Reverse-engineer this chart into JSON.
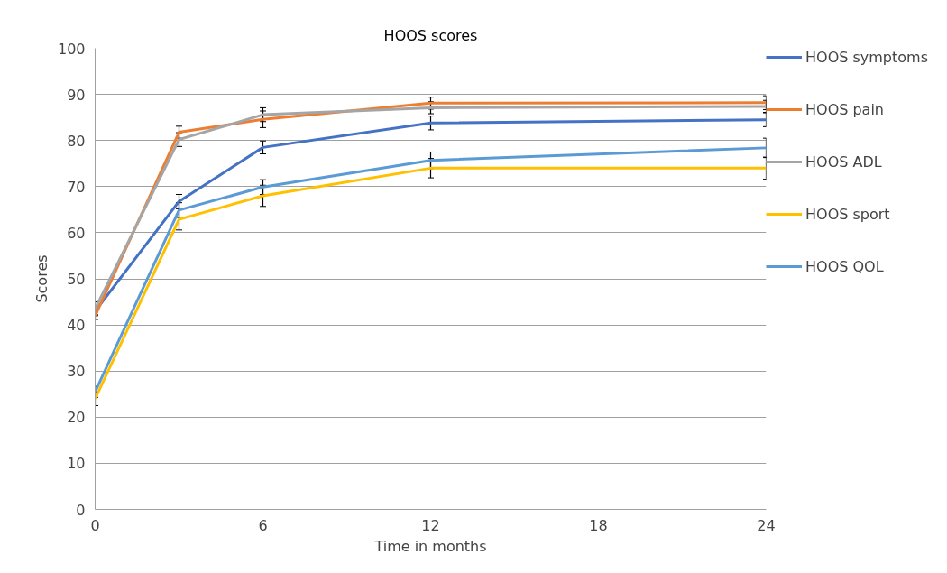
{
  "chart_data": {
    "type": "line",
    "title": "HOOS scores",
    "xlabel": "Time in months",
    "ylabel": "Scores",
    "x": [
      0,
      3,
      6,
      12,
      24
    ],
    "xlim": [
      0,
      24
    ],
    "xticks": [
      0,
      6,
      12,
      18,
      24
    ],
    "ylim": [
      0,
      100
    ],
    "yticks": [
      0,
      10,
      20,
      30,
      40,
      50,
      60,
      70,
      80,
      90,
      100
    ],
    "grid": "y",
    "legend": "right",
    "marker": "none",
    "line_style": "solid",
    "series": [
      {
        "name": "HOOS symptoms",
        "color": "#4472c4",
        "values": [
          43,
          66.8,
          78.5,
          83.8,
          84.5
        ],
        "errors": [
          0.8,
          1.5,
          1.4,
          1.5,
          1.5
        ]
      },
      {
        "name": "HOOS pain",
        "color": "#ed7d31",
        "values": [
          42,
          81.8,
          84.6,
          88.1,
          88.2
        ],
        "errors": [
          0.8,
          1.3,
          1.8,
          1.3,
          1.5
        ]
      },
      {
        "name": "HOOS ADL",
        "color": "#a5a5a5",
        "values": [
          43.5,
          80.2,
          85.6,
          87.1,
          87.4
        ],
        "errors": [
          1.5,
          1.5,
          1.5,
          1.3,
          1.3
        ]
      },
      {
        "name": "HOOS sport",
        "color": "#ffc000",
        "values": [
          24,
          62.9,
          68,
          74,
          74
        ],
        "errors": [
          1.5,
          2.3,
          2.3,
          2.1,
          2.4
        ]
      },
      {
        "name": "HOOS QOL",
        "color": "#5b9bd5",
        "values": [
          25.5,
          64.9,
          69.9,
          75.7,
          78.4
        ],
        "errors": [
          1.2,
          1.6,
          1.6,
          1.8,
          2.1
        ]
      }
    ]
  }
}
